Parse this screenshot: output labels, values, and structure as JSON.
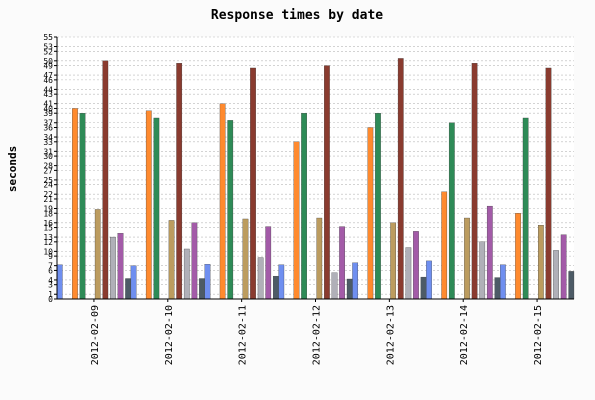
{
  "chart_data": {
    "type": "bar",
    "title": "Response times by date",
    "xlabel": "",
    "ylabel": "seconds",
    "ylim": [
      0,
      55
    ],
    "yticks": [
      0,
      1,
      3,
      4,
      6,
      7,
      9,
      10,
      12,
      13,
      15,
      16,
      18,
      19,
      21,
      22,
      24,
      25,
      27,
      28,
      30,
      31,
      33,
      34,
      36,
      37,
      39,
      40,
      41,
      43,
      44,
      46,
      47,
      49,
      50,
      52,
      53,
      55
    ],
    "grid": true,
    "legend": "none",
    "categories": [
      "2012-02-09",
      "2012-02-10",
      "2012-02-11",
      "2012-02-12",
      "2012-02-13",
      "2012-02-14",
      "2012-02-15"
    ],
    "series": [
      {
        "color": "#6f8ff0",
        "values": [
          7.2,
          7.0,
          7.3,
          7.2,
          7.6,
          8.0,
          7.2
        ]
      },
      {
        "color": "#f58634",
        "values": [
          0,
          0,
          0,
          0,
          0,
          0,
          0
        ]
      },
      {
        "color": "#ff8a2e",
        "values": [
          40.0,
          39.5,
          41.0,
          33.0,
          36.0,
          22.5,
          18.0
        ]
      },
      {
        "color": "#2e8b57",
        "values": [
          39.0,
          38.0,
          37.5,
          39.0,
          39.0,
          37.0,
          38.0
        ]
      },
      {
        "color": "#4682b4",
        "values": [
          0,
          0,
          0,
          0,
          0,
          0,
          0
        ]
      },
      {
        "color": "#bc9c5f",
        "values": [
          18.8,
          16.5,
          16.8,
          17.0,
          16.0,
          17.0,
          15.5
        ]
      },
      {
        "color": "#8a3b2f",
        "values": [
          50.0,
          49.5,
          48.5,
          49.0,
          50.5,
          49.5,
          48.5
        ]
      },
      {
        "color": "#b0b0b8",
        "values": [
          13.0,
          10.5,
          8.7,
          5.5,
          10.8,
          12.0,
          10.2
        ]
      },
      {
        "color": "#a35ba8",
        "values": [
          13.8,
          16.0,
          15.2,
          15.2,
          14.2,
          19.5,
          13.5
        ]
      },
      {
        "color": "#4d5b66",
        "values": [
          4.3,
          4.3,
          4.8,
          4.2,
          4.6,
          4.5,
          5.8
        ]
      }
    ]
  }
}
